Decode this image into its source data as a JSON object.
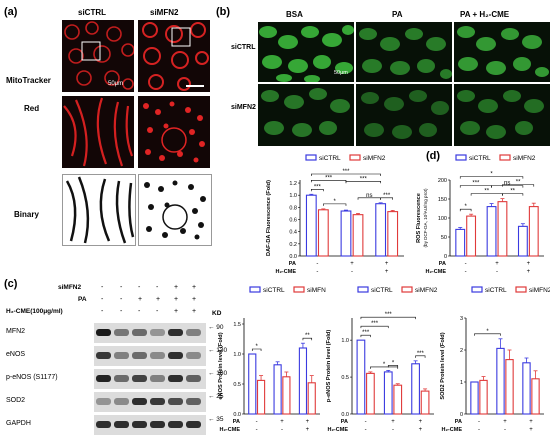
{
  "panels": {
    "a": {
      "label": "(a)",
      "col_headers": [
        "siCTRL",
        "siMFN2"
      ],
      "row_labels": [
        "MitoTracker",
        "Red",
        "Binary"
      ],
      "scalebar": "50μm"
    },
    "b": {
      "label": "(b)",
      "col_headers": [
        "BSA",
        "PA",
        "PA + H₂-CME"
      ],
      "row_labels": [
        "siCTRL",
        "siMFN2"
      ],
      "scalebar": "50μm"
    },
    "c": {
      "label": "(c)",
      "row_labels": [
        "siMFN2",
        "PA",
        "H₂-CME(100μg/ml)"
      ],
      "treatments": [
        [
          "-",
          "-",
          "-",
          "-",
          "+",
          "+"
        ],
        [
          "-",
          "-",
          "+",
          "+",
          "+",
          "+"
        ],
        [
          "-",
          "-",
          "-",
          "-",
          "+",
          "+"
        ]
      ],
      "kd_label": "KD",
      "bands": [
        {
          "name": "MFN2",
          "kd": "90"
        },
        {
          "name": "eNOS",
          "kd": "130"
        },
        {
          "name": "p-eNOS (S1177)",
          "kd": "180"
        },
        {
          "name": "SOD2",
          "kd": "25"
        },
        {
          "name": "GAPDH",
          "kd": "35"
        }
      ]
    },
    "d": {
      "label": "(d)"
    }
  },
  "legend": {
    "siCTRL": "siCTRL",
    "siMFN2": "siMFN2"
  },
  "colors": {
    "siCTRL": "#3a3ae0",
    "siMFN2": "#e03a3a"
  },
  "x_rows": {
    "pa": "PA",
    "h2": "H₂-CME",
    "marks": [
      "-",
      "+",
      "+"
    ],
    "h2marks": [
      "-",
      "-",
      "+"
    ]
  },
  "chart_data": [
    {
      "id": "daf",
      "type": "bar",
      "ylabel": "DAF-DA Fluorescence (Fold)",
      "ylim": [
        0,
        1.25
      ],
      "yticks": [
        "0.0",
        "0.2",
        "0.4",
        "0.6",
        "0.8",
        "1.0",
        "1.2"
      ],
      "series": [
        {
          "name": "siCTRL",
          "values": [
            1.0,
            0.74,
            0.86
          ],
          "errors": [
            0.015,
            0.015,
            0.015
          ]
        },
        {
          "name": "siMFN2",
          "values": [
            0.76,
            0.68,
            0.73
          ],
          "errors": [
            0.015,
            0.02,
            0.02
          ]
        }
      ],
      "sig": [
        "***",
        "***",
        "***",
        "***",
        "*",
        "ns",
        "***"
      ]
    },
    {
      "id": "ros",
      "type": "bar",
      "ylabel": "ROS Fluorescence",
      "ylabel2": "(by DCF-DA, 10³AU/mg prot)",
      "ylim": [
        0,
        200
      ],
      "yticks": [
        "0",
        "50",
        "100",
        "150",
        "200"
      ],
      "series": [
        {
          "name": "siCTRL",
          "values": [
            70,
            130,
            78
          ],
          "errors": [
            5,
            8,
            7
          ]
        },
        {
          "name": "siMFN2",
          "values": [
            105,
            143,
            130
          ],
          "errors": [
            5,
            8,
            9
          ]
        }
      ],
      "sig": [
        "*",
        "***",
        "*",
        "ns",
        "**",
        "**",
        "**"
      ]
    },
    {
      "id": "enos",
      "type": "bar",
      "ylabel": "eNOS Protein level (Fold)",
      "ylim": [
        0,
        1.6
      ],
      "yticks": [
        "0.0",
        "0.5",
        "1.0",
        "1.5"
      ],
      "series": [
        {
          "name": "siCTRL",
          "values": [
            1.0,
            0.82,
            1.1
          ],
          "errors": [
            0.0,
            0.05,
            0.08
          ]
        },
        {
          "name": "siMFN2",
          "values": [
            0.56,
            0.62,
            0.52
          ],
          "errors": [
            0.08,
            0.08,
            0.12
          ]
        }
      ],
      "sig": [
        "*",
        "**"
      ]
    },
    {
      "id": "penos",
      "type": "bar",
      "ylabel": "p-eNOS Protein level (Fold)",
      "ylim": [
        0,
        1.3
      ],
      "yticks": [
        "0.0",
        "0.5",
        "1.0"
      ],
      "series": [
        {
          "name": "siCTRL",
          "values": [
            1.0,
            0.57,
            0.68
          ],
          "errors": [
            0.0,
            0.02,
            0.04
          ]
        },
        {
          "name": "siMFN2",
          "values": [
            0.55,
            0.39,
            0.31
          ],
          "errors": [
            0.02,
            0.02,
            0.03
          ]
        }
      ],
      "sig": [
        "***",
        "***",
        "***",
        "*",
        "*",
        "***"
      ]
    },
    {
      "id": "sod2",
      "type": "bar",
      "ylabel": "SOD2 Protein level (Fold)",
      "ylim": [
        0,
        3
      ],
      "yticks": [
        "0",
        "1",
        "2",
        "3"
      ],
      "series": [
        {
          "name": "siCTRL",
          "values": [
            1.0,
            2.05,
            1.6
          ],
          "errors": [
            0.0,
            0.3,
            0.15
          ]
        },
        {
          "name": "siMFN2",
          "values": [
            1.05,
            1.7,
            1.1
          ],
          "errors": [
            0.12,
            0.3,
            0.25
          ]
        }
      ],
      "sig": [
        "*"
      ]
    }
  ]
}
